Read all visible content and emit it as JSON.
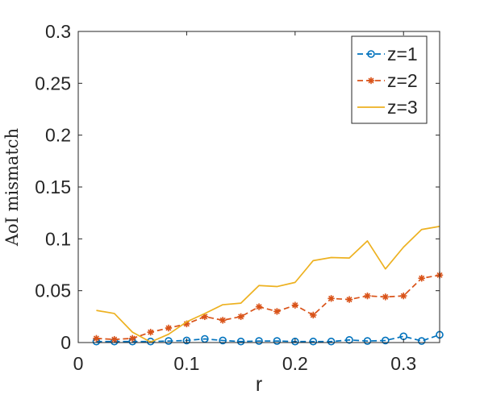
{
  "chart_data": {
    "type": "line",
    "xlabel": "r",
    "ylabel": "AoI mismatch",
    "xlim": [
      0,
      0.3333
    ],
    "ylim": [
      0,
      0.3
    ],
    "xticks": [
      0,
      0.1,
      0.2,
      0.3
    ],
    "xtick_labels": [
      "0",
      "0.1",
      "0.2",
      "0.3"
    ],
    "yticks": [
      0,
      0.05,
      0.1,
      0.15,
      0.2,
      0.25,
      0.3
    ],
    "ytick_labels": [
      "0",
      "0.05",
      "0.1",
      "0.15",
      "0.2",
      "0.25",
      "0.3"
    ],
    "grid": false,
    "legend_position": "top-right",
    "x": [
      0.0167,
      0.0333,
      0.05,
      0.0667,
      0.0833,
      0.1,
      0.1167,
      0.1333,
      0.15,
      0.1667,
      0.1833,
      0.2,
      0.2167,
      0.2333,
      0.25,
      0.2667,
      0.2833,
      0.3,
      0.3167,
      0.3333
    ],
    "series": [
      {
        "name": "z=1",
        "color": "#0072BD",
        "line_style": "dashed",
        "marker": "circle",
        "values": [
          0.001,
          0.001,
          0.001,
          0.001,
          0.0015,
          0.002,
          0.0035,
          0.002,
          0.001,
          0.0015,
          0.0015,
          0.001,
          0.001,
          0.001,
          0.0025,
          0.0015,
          0.002,
          0.006,
          0.0015,
          0.0075
        ]
      },
      {
        "name": "z=2",
        "color": "#D95319",
        "line_style": "dashed",
        "marker": "asterisk",
        "values": [
          0.004,
          0.003,
          0.004,
          0.01,
          0.014,
          0.018,
          0.025,
          0.0215,
          0.025,
          0.0345,
          0.03,
          0.036,
          0.0265,
          0.0425,
          0.0415,
          0.045,
          0.044,
          0.045,
          0.062,
          0.065
        ]
      },
      {
        "name": "z=3",
        "color": "#EDB120",
        "line_style": "solid",
        "marker": "none",
        "values": [
          0.031,
          0.028,
          0.01,
          0.0005,
          0.008,
          0.02,
          0.028,
          0.0365,
          0.038,
          0.055,
          0.054,
          0.058,
          0.079,
          0.082,
          0.0815,
          0.098,
          0.071,
          0.092,
          0.109,
          0.112
        ]
      }
    ]
  }
}
